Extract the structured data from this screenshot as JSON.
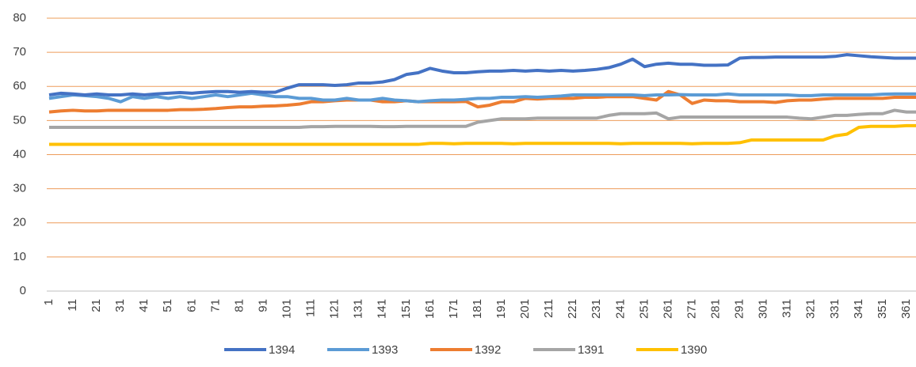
{
  "chart_data": {
    "type": "line",
    "x": [
      1,
      6,
      11,
      16,
      21,
      26,
      31,
      36,
      41,
      46,
      51,
      56,
      61,
      66,
      71,
      76,
      81,
      86,
      91,
      96,
      101,
      106,
      111,
      116,
      121,
      126,
      131,
      136,
      141,
      146,
      151,
      156,
      161,
      166,
      171,
      176,
      181,
      186,
      191,
      196,
      201,
      206,
      211,
      216,
      221,
      226,
      231,
      236,
      241,
      246,
      251,
      256,
      261,
      266,
      271,
      276,
      281,
      286,
      291,
      296,
      301,
      306,
      311,
      316,
      321,
      326,
      331,
      336,
      341,
      346,
      351,
      356,
      361,
      365
    ],
    "xlim": [
      0,
      365
    ],
    "xticks": [
      1,
      11,
      21,
      31,
      41,
      51,
      61,
      71,
      81,
      91,
      101,
      111,
      121,
      131,
      141,
      151,
      161,
      171,
      181,
      191,
      201,
      211,
      221,
      231,
      241,
      251,
      261,
      271,
      281,
      291,
      301,
      311,
      321,
      331,
      341,
      351,
      361
    ],
    "ylim": [
      0,
      80
    ],
    "yticks": [
      0,
      10,
      20,
      30,
      40,
      50,
      60,
      70,
      80
    ],
    "grid": true,
    "grid_color": "#ed9c5a",
    "legend": "bottom",
    "series": [
      {
        "name": "1394",
        "color": "#4472c4",
        "values": [
          57.5,
          58,
          57.8,
          57.5,
          57.8,
          57.5,
          57.5,
          57.8,
          57.5,
          57.8,
          58,
          58.2,
          58,
          58.3,
          58.5,
          58.5,
          58.3,
          58.5,
          58.3,
          58.3,
          59.5,
          60.5,
          60.5,
          60.5,
          60.3,
          60.5,
          61,
          61,
          61.3,
          62,
          63.5,
          64,
          65.3,
          64.5,
          64,
          64,
          64.3,
          64.5,
          64.5,
          64.7,
          64.5,
          64.7,
          64.5,
          64.7,
          64.5,
          64.7,
          65,
          65.5,
          66.5,
          68,
          65.8,
          66.5,
          66.8,
          66.5,
          66.5,
          66.2,
          66.2,
          66.3,
          68.3,
          68.5,
          68.5,
          68.6,
          68.6,
          68.6,
          68.6,
          68.6,
          68.8,
          69.3,
          69,
          68.7,
          68.5,
          68.3,
          68.3,
          68.3
        ]
      },
      {
        "name": "1393",
        "color": "#5b9bd5",
        "values": [
          56.5,
          57,
          57.5,
          57.3,
          57,
          56.5,
          55.5,
          57,
          56.5,
          57,
          56.5,
          57,
          56.5,
          57,
          57.5,
          57,
          57.5,
          58,
          57.5,
          57,
          57,
          56.5,
          56.5,
          56,
          56,
          56.5,
          56,
          56,
          56.5,
          56,
          55.8,
          55.5,
          55.8,
          56,
          56,
          56.2,
          56.5,
          56.5,
          56.8,
          56.8,
          57,
          56.8,
          57,
          57.2,
          57.5,
          57.5,
          57.5,
          57.5,
          57.5,
          57.5,
          57.3,
          57.5,
          57.5,
          57.6,
          57.5,
          57.5,
          57.5,
          57.8,
          57.5,
          57.5,
          57.5,
          57.5,
          57.5,
          57.3,
          57.3,
          57.5,
          57.5,
          57.5,
          57.5,
          57.5,
          57.7,
          57.8,
          57.8,
          57.8
        ]
      },
      {
        "name": "1392",
        "color": "#ed7d31",
        "values": [
          52.5,
          52.8,
          53,
          52.8,
          52.8,
          53,
          53,
          53,
          53,
          53,
          53,
          53.2,
          53.2,
          53.3,
          53.5,
          53.8,
          54,
          54,
          54.2,
          54.3,
          54.5,
          54.8,
          55.5,
          55.5,
          55.8,
          56,
          56,
          56,
          55.5,
          55.5,
          55.8,
          55.5,
          55.5,
          55.5,
          55.5,
          55.6,
          54,
          54.5,
          55.5,
          55.5,
          56.5,
          56.3,
          56.5,
          56.5,
          56.5,
          56.8,
          56.8,
          57,
          57,
          57,
          56.5,
          56,
          58.5,
          57.5,
          55,
          56,
          55.8,
          55.8,
          55.5,
          55.5,
          55.5,
          55.3,
          55.8,
          56,
          56,
          56.3,
          56.5,
          56.5,
          56.5,
          56.5,
          56.5,
          56.8,
          56.8,
          56.8
        ]
      },
      {
        "name": "1391",
        "color": "#a5a5a5",
        "values": [
          48,
          48,
          48,
          48,
          48,
          48,
          48,
          48,
          48,
          48,
          48,
          48,
          48,
          48,
          48,
          48,
          48,
          48,
          48,
          48,
          48,
          48,
          48.2,
          48.2,
          48.3,
          48.3,
          48.3,
          48.3,
          48.2,
          48.2,
          48.3,
          48.3,
          48.3,
          48.3,
          48.3,
          48.3,
          49.5,
          50,
          50.5,
          50.5,
          50.5,
          50.7,
          50.7,
          50.7,
          50.7,
          50.7,
          50.7,
          51.5,
          52,
          52,
          52,
          52.2,
          50.5,
          51,
          51,
          51,
          51,
          51,
          51,
          51,
          51,
          51,
          51,
          50.7,
          50.5,
          51,
          51.5,
          51.5,
          51.8,
          52,
          52,
          53,
          52.5,
          52.5
        ]
      },
      {
        "name": "1390",
        "color": "#ffc000",
        "values": [
          43,
          43,
          43,
          43,
          43,
          43,
          43,
          43,
          43,
          43,
          43,
          43,
          43,
          43,
          43,
          43,
          43,
          43,
          43,
          43,
          43,
          43,
          43,
          43,
          43,
          43,
          43,
          43,
          43,
          43,
          43,
          43,
          43.3,
          43.3,
          43.2,
          43.3,
          43.3,
          43.3,
          43.3,
          43.2,
          43.3,
          43.3,
          43.3,
          43.3,
          43.3,
          43.3,
          43.3,
          43.3,
          43.2,
          43.3,
          43.3,
          43.3,
          43.3,
          43.3,
          43.2,
          43.3,
          43.3,
          43.3,
          43.5,
          44.3,
          44.3,
          44.3,
          44.3,
          44.3,
          44.3,
          44.3,
          45.5,
          46,
          48,
          48.3,
          48.3,
          48.3,
          48.5,
          48.5
        ]
      }
    ]
  }
}
